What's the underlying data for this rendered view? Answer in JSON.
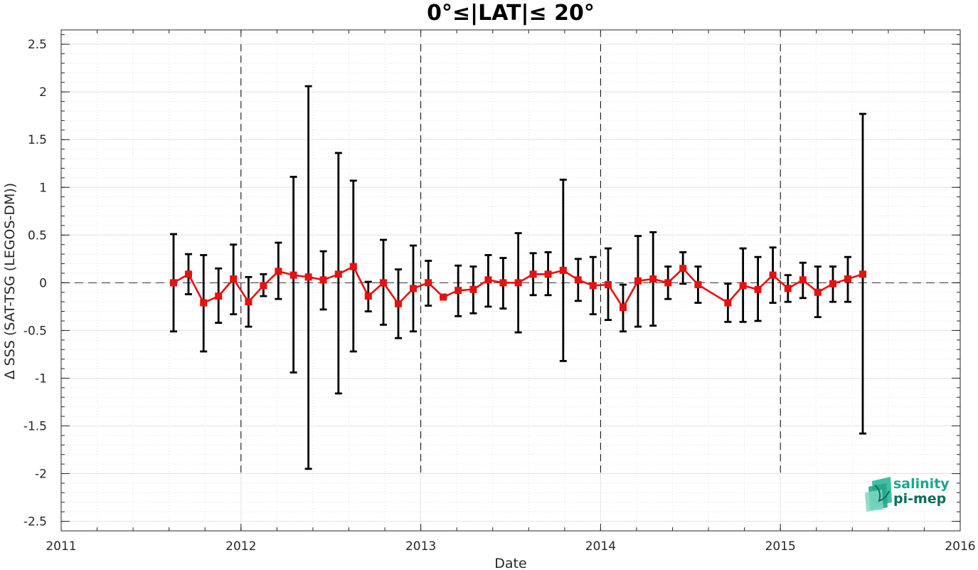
{
  "chart_data": {
    "type": "line",
    "title": "0°≤|LAT|≤ 20°",
    "xlabel": "Date",
    "ylabel": "Δ SSS (SAT-TSG (LEGOS-DM))",
    "xlim": [
      2011,
      2016
    ],
    "ylim": [
      -2.6,
      2.65
    ],
    "x_ticks": [
      2011,
      2012,
      2013,
      2014,
      2015,
      2016
    ],
    "x_tick_labels": [
      "2011",
      "2012",
      "2013",
      "2014",
      "2015",
      "2016"
    ],
    "y_ticks": [
      2.5,
      2,
      1.5,
      1,
      0.5,
      0,
      -0.5,
      -1,
      -1.5,
      -2,
      -2.5
    ],
    "y_tick_labels": [
      "2.5",
      "2",
      "1.5",
      "1",
      "0.5",
      "0",
      "-0.5",
      "-1",
      "-1.5",
      "-2",
      "-2.5"
    ],
    "grid": true,
    "minor_grid": true,
    "reference_line_y": 0,
    "year_boundaries": [
      2012,
      2013,
      2014,
      2015
    ],
    "series": [
      {
        "color": "#e81010",
        "marker": "square",
        "error_bar_color": "#000000",
        "points": [
          {
            "x": 2011.625,
            "y": 0.0,
            "lo": -0.51,
            "hi": 0.51
          },
          {
            "x": 2011.708,
            "y": 0.09,
            "lo": -0.12,
            "hi": 0.3
          },
          {
            "x": 2011.792,
            "y": -0.21,
            "lo": -0.72,
            "hi": 0.29
          },
          {
            "x": 2011.875,
            "y": -0.14,
            "lo": -0.42,
            "hi": 0.15
          },
          {
            "x": 2011.958,
            "y": 0.04,
            "lo": -0.33,
            "hi": 0.4
          },
          {
            "x": 2012.042,
            "y": -0.2,
            "lo": -0.46,
            "hi": 0.06
          },
          {
            "x": 2012.125,
            "y": -0.03,
            "lo": -0.14,
            "hi": 0.09
          },
          {
            "x": 2012.208,
            "y": 0.12,
            "lo": -0.17,
            "hi": 0.42
          },
          {
            "x": 2012.292,
            "y": 0.08,
            "lo": -0.94,
            "hi": 1.11
          },
          {
            "x": 2012.375,
            "y": 0.06,
            "lo": -1.95,
            "hi": 2.06
          },
          {
            "x": 2012.458,
            "y": 0.03,
            "lo": -0.28,
            "hi": 0.33
          },
          {
            "x": 2012.542,
            "y": 0.09,
            "lo": -1.16,
            "hi": 1.36
          },
          {
            "x": 2012.625,
            "y": 0.17,
            "lo": -0.72,
            "hi": 1.07
          },
          {
            "x": 2012.708,
            "y": -0.14,
            "lo": -0.3,
            "hi": 0.01
          },
          {
            "x": 2012.792,
            "y": 0.0,
            "lo": -0.44,
            "hi": 0.45
          },
          {
            "x": 2012.875,
            "y": -0.22,
            "lo": -0.58,
            "hi": 0.14
          },
          {
            "x": 2012.958,
            "y": -0.06,
            "lo": -0.51,
            "hi": 0.39
          },
          {
            "x": 2013.042,
            "y": 0.0,
            "lo": -0.24,
            "hi": 0.23
          },
          {
            "x": 2013.125,
            "y": -0.15,
            "lo": -0.15,
            "hi": -0.15
          },
          {
            "x": 2013.208,
            "y": -0.08,
            "lo": -0.35,
            "hi": 0.18
          },
          {
            "x": 2013.292,
            "y": -0.07,
            "lo": -0.32,
            "hi": 0.17
          },
          {
            "x": 2013.375,
            "y": 0.03,
            "lo": -0.25,
            "hi": 0.29
          },
          {
            "x": 2013.458,
            "y": 0.0,
            "lo": -0.27,
            "hi": 0.26
          },
          {
            "x": 2013.542,
            "y": 0.0,
            "lo": -0.52,
            "hi": 0.52
          },
          {
            "x": 2013.625,
            "y": 0.09,
            "lo": -0.13,
            "hi": 0.31
          },
          {
            "x": 2013.708,
            "y": 0.09,
            "lo": -0.13,
            "hi": 0.32
          },
          {
            "x": 2013.792,
            "y": 0.13,
            "lo": -0.82,
            "hi": 1.08
          },
          {
            "x": 2013.875,
            "y": 0.03,
            "lo": -0.19,
            "hi": 0.25
          },
          {
            "x": 2013.958,
            "y": -0.03,
            "lo": -0.33,
            "hi": 0.27
          },
          {
            "x": 2014.042,
            "y": -0.02,
            "lo": -0.39,
            "hi": 0.36
          },
          {
            "x": 2014.125,
            "y": -0.26,
            "lo": -0.51,
            "hi": -0.02
          },
          {
            "x": 2014.208,
            "y": 0.02,
            "lo": -0.46,
            "hi": 0.49
          },
          {
            "x": 2014.292,
            "y": 0.04,
            "lo": -0.45,
            "hi": 0.53
          },
          {
            "x": 2014.375,
            "y": 0.0,
            "lo": -0.17,
            "hi": 0.17
          },
          {
            "x": 2014.458,
            "y": 0.15,
            "lo": -0.01,
            "hi": 0.32
          },
          {
            "x": 2014.542,
            "y": -0.02,
            "lo": -0.21,
            "hi": 0.17
          },
          {
            "x": 2014.708,
            "y": -0.21,
            "lo": -0.41,
            "hi": -0.01
          },
          {
            "x": 2014.792,
            "y": -0.03,
            "lo": -0.41,
            "hi": 0.36
          },
          {
            "x": 2014.875,
            "y": -0.07,
            "lo": -0.4,
            "hi": 0.27
          },
          {
            "x": 2014.958,
            "y": 0.08,
            "lo": -0.21,
            "hi": 0.37
          },
          {
            "x": 2015.042,
            "y": -0.06,
            "lo": -0.2,
            "hi": 0.08
          },
          {
            "x": 2015.125,
            "y": 0.03,
            "lo": -0.16,
            "hi": 0.21
          },
          {
            "x": 2015.208,
            "y": -0.1,
            "lo": -0.36,
            "hi": 0.17
          },
          {
            "x": 2015.292,
            "y": -0.01,
            "lo": -0.2,
            "hi": 0.17
          },
          {
            "x": 2015.375,
            "y": 0.04,
            "lo": -0.2,
            "hi": 0.27
          },
          {
            "x": 2015.458,
            "y": 0.09,
            "lo": -1.58,
            "hi": 1.77
          }
        ]
      }
    ]
  },
  "logo": {
    "line1": "salinity",
    "line2": "pi-mep",
    "colors": {
      "primary": "#1aa791",
      "secondary": "#0b6e5c"
    }
  }
}
